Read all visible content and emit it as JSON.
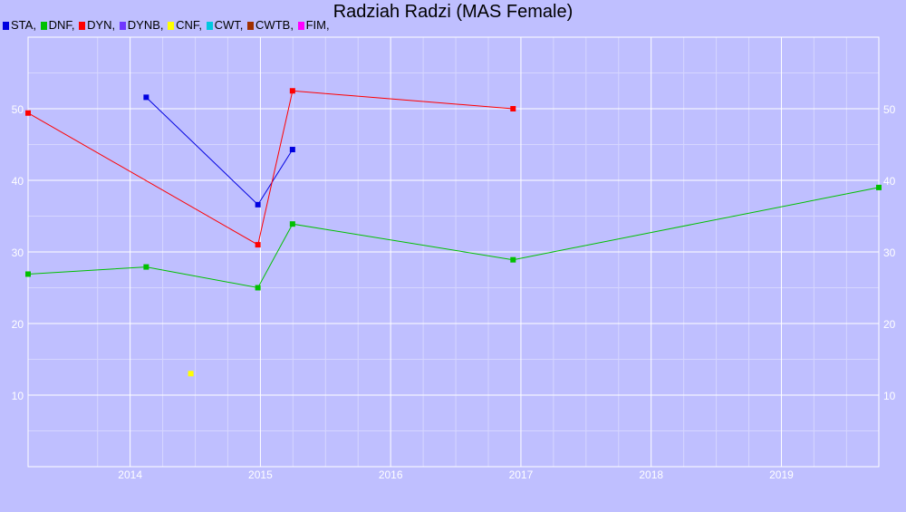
{
  "chart_data": {
    "type": "line",
    "title": "Radziah Radzi (MAS Female)",
    "xlabel": "",
    "ylabel": "",
    "xlim": [
      "2013-03-21",
      "2019-10-01"
    ],
    "ylim": [
      0,
      60
    ],
    "y_ticks": [
      10,
      20,
      30,
      40,
      50
    ],
    "x_ticks": [
      "2014",
      "2015",
      "2016",
      "2017",
      "2018",
      "2019"
    ],
    "grid": true,
    "legend_position": "top-left",
    "legend": [
      {
        "name": "STA,",
        "color": "#0000e0"
      },
      {
        "name": "DNF,",
        "color": "#00c000"
      },
      {
        "name": "DYN,",
        "color": "#ff0000"
      },
      {
        "name": "DYNB,",
        "color": "#6f36ff"
      },
      {
        "name": "CNF,",
        "color": "#ffff00"
      },
      {
        "name": "CWT,",
        "color": "#00c8e0"
      },
      {
        "name": "CWTB,",
        "color": "#a03000"
      },
      {
        "name": "FIM,",
        "color": "#ff00ff"
      }
    ],
    "series": [
      {
        "name": "STA,",
        "color": "#0000e0",
        "points": [
          [
            "2014-02-15",
            51.6
          ],
          [
            "2014-12-25",
            36.6
          ],
          [
            "2015-04-01",
            44.3
          ]
        ]
      },
      {
        "name": "DNF,",
        "color": "#00c000",
        "points": [
          [
            "2013-03-21",
            26.9
          ],
          [
            "2014-02-15",
            27.9
          ],
          [
            "2014-12-25",
            25.0
          ],
          [
            "2015-04-01",
            33.9
          ],
          [
            "2016-12-10",
            28.9
          ],
          [
            "2019-10-01",
            39.0
          ]
        ]
      },
      {
        "name": "DYN,",
        "color": "#ff0000",
        "points": [
          [
            "2013-03-21",
            49.4
          ],
          [
            "2014-12-25",
            31.0
          ],
          [
            "2015-04-01",
            52.5
          ],
          [
            "2016-12-10",
            50.0
          ]
        ]
      },
      {
        "name": "CNF,",
        "color": "#ffff00",
        "points": [
          [
            "2014-06-20",
            13.0
          ]
        ]
      }
    ]
  }
}
